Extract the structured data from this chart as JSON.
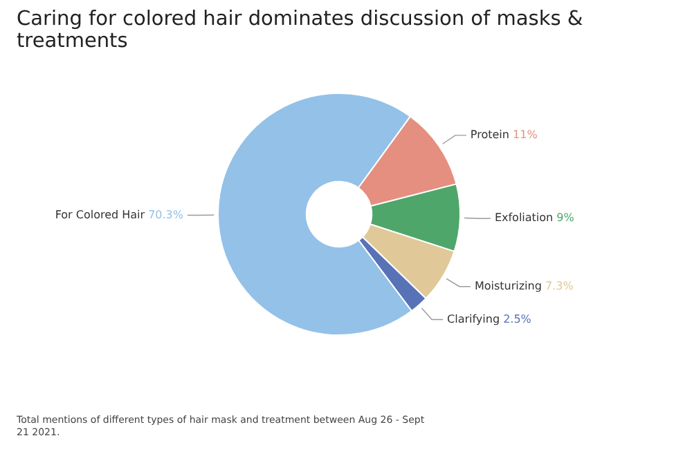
{
  "chart_data": {
    "type": "donut",
    "title": "Caring for colored hair dominates discussion of masks & treatments",
    "categories": [
      "Protein",
      "Exfoliation",
      "Moisturizing",
      "Clarifying",
      "For Colored Hair"
    ],
    "values": [
      11,
      9,
      7.3,
      2.5,
      70.3
    ],
    "value_labels": [
      "11%",
      "9%",
      "7.3%",
      "2.5%",
      "70.3%"
    ],
    "colors": [
      "#e58f80",
      "#4fa66a",
      "#e0c898",
      "#5872b8",
      "#93c1e8"
    ],
    "legend": false,
    "annotations": [
      "Total mentions of different types of hair mask and treatment between Aug 26 - Sept 21 2021."
    ]
  }
}
